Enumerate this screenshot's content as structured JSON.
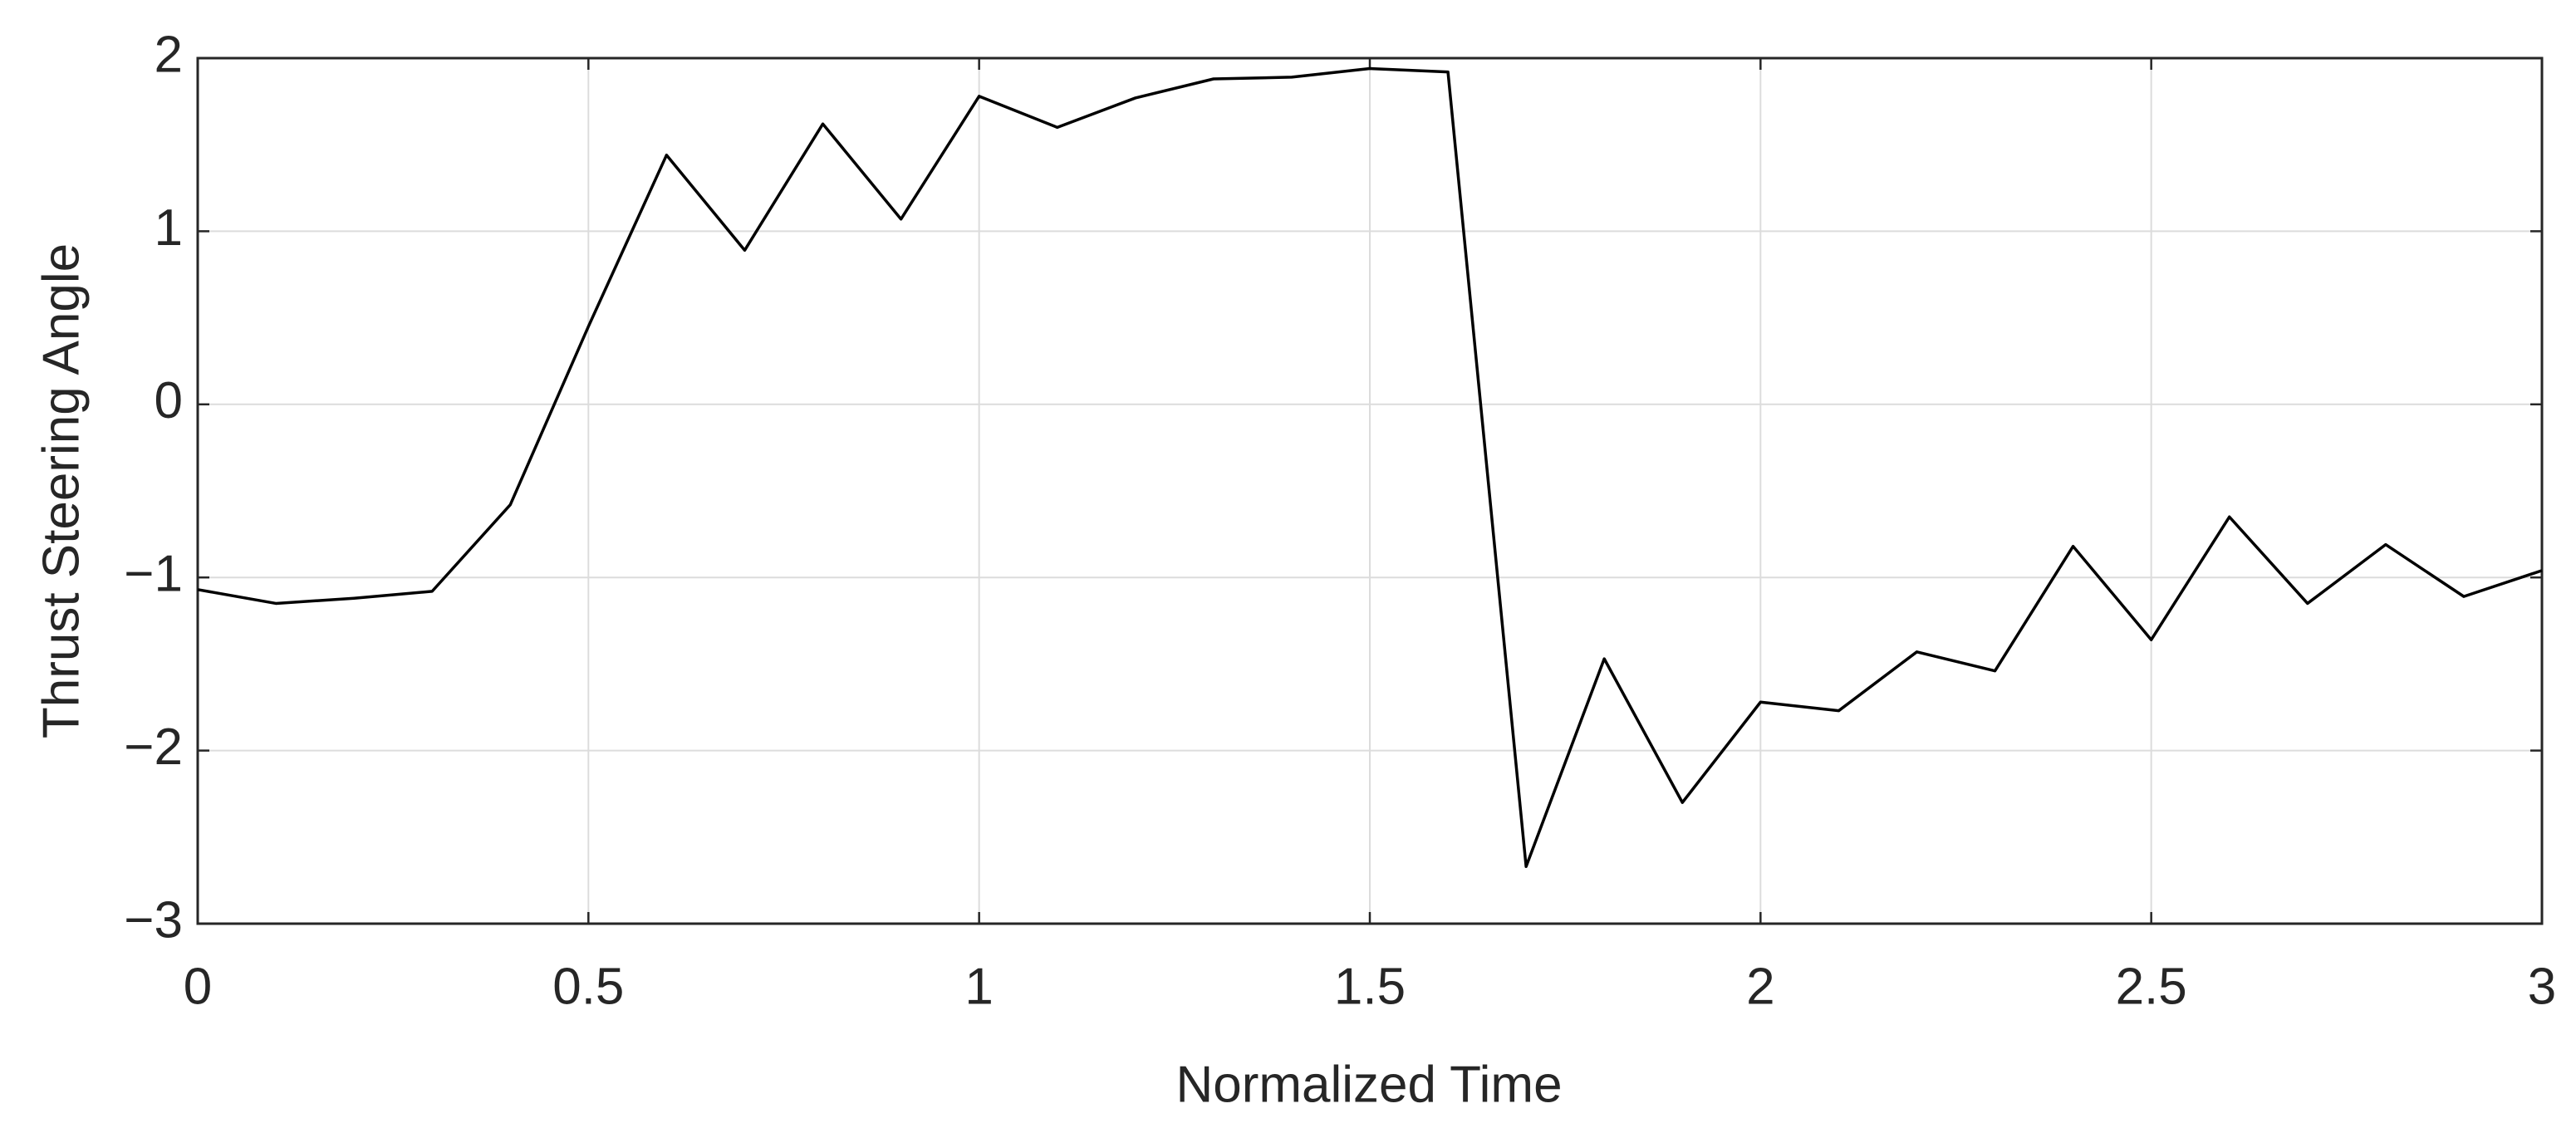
{
  "chart_data": {
    "type": "line",
    "xlabel": "Normalized Time",
    "ylabel": "Thrust Steering Angle",
    "x": [
      0,
      0.1,
      0.2,
      0.3,
      0.4,
      0.5,
      0.6,
      0.7,
      0.8,
      0.9,
      1.0,
      1.1,
      1.2,
      1.3,
      1.4,
      1.5,
      1.6,
      1.7,
      1.8,
      1.9,
      2.0,
      2.1,
      2.2,
      2.3,
      2.4,
      2.5,
      2.6,
      2.7,
      2.8,
      2.9,
      3.0
    ],
    "values": [
      -1.07,
      -1.15,
      -1.12,
      -1.08,
      -0.58,
      0.45,
      1.44,
      0.89,
      1.62,
      1.07,
      1.78,
      1.6,
      1.77,
      1.88,
      1.89,
      1.94,
      1.92,
      -2.67,
      -1.47,
      -2.3,
      -1.72,
      -1.77,
      -1.43,
      -1.54,
      -0.82,
      -1.36,
      -0.65,
      -1.15,
      -0.81,
      -1.11,
      -0.96
    ],
    "color": "#000000",
    "xlim": [
      0,
      3
    ],
    "xticks": [
      0,
      0.5,
      1,
      1.5,
      2,
      2.5,
      3
    ],
    "ylim": [
      -3,
      2
    ],
    "yticks": [
      {
        "value": -3,
        "label": "−3"
      },
      {
        "value": -2,
        "label": "−2"
      },
      {
        "value": -1,
        "label": "−1"
      },
      0,
      1,
      2
    ],
    "grid": true
  }
}
